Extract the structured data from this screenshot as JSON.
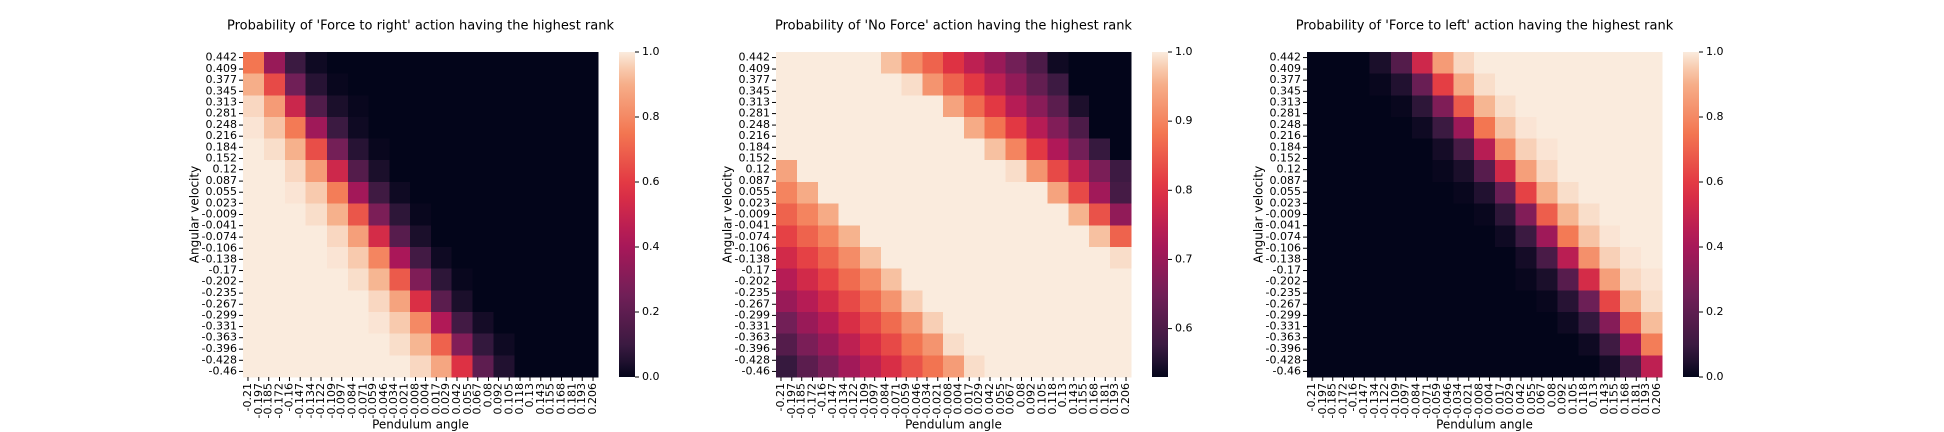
{
  "chart_data": [
    {
      "type": "heatmap",
      "title": "Probability of 'Force to right' action having the highest rank",
      "xlabel": "Pendulum angle",
      "ylabel": "Angular velocity",
      "colormap": "rocket",
      "xlim": [
        -0.216,
        0.212
      ],
      "ylim": [
        -0.476,
        0.458
      ],
      "zlim": [
        0,
        1
      ],
      "xticks": [
        -0.21,
        -0.197,
        -0.185,
        -0.172,
        -0.16,
        -0.147,
        -0.134,
        -0.122,
        -0.109,
        -0.097,
        -0.084,
        -0.071,
        -0.059,
        -0.046,
        -0.034,
        -0.021,
        -0.008,
        0.004,
        0.017,
        0.029,
        0.042,
        0.055,
        0.067,
        0.08,
        0.092,
        0.105,
        0.118,
        0.13,
        0.143,
        0.155,
        0.168,
        0.181,
        0.193,
        0.206
      ],
      "yticks": [
        0.442,
        0.409,
        0.377,
        0.345,
        0.313,
        0.281,
        0.248,
        0.216,
        0.184,
        0.152,
        0.12,
        0.087,
        0.055,
        0.023,
        -0.009,
        -0.041,
        -0.074,
        -0.106,
        -0.138,
        -0.17,
        -0.202,
        -0.235,
        -0.267,
        -0.299,
        -0.331,
        -0.363,
        -0.396,
        -0.428,
        -0.46
      ],
      "zticks": [
        {
          "value": 0,
          "label": "0.0"
        },
        {
          "value": 0.2,
          "label": "0.2"
        },
        {
          "value": 0.4,
          "label": "0.4"
        },
        {
          "value": 0.6,
          "label": "0.6"
        },
        {
          "value": 0.8,
          "label": "0.8"
        },
        {
          "value": 1,
          "label": "1.0"
        }
      ],
      "x": [
        -0.203,
        -0.178,
        -0.153,
        -0.128,
        -0.102,
        -0.077,
        -0.052,
        -0.027,
        -0.002,
        0.023,
        0.048,
        0.073,
        0.099,
        0.124,
        0.149,
        0.174,
        0.199
      ],
      "y": [
        0.427,
        0.365,
        0.302,
        0.24,
        0.178,
        0.116,
        0.053,
        -0.009,
        -0.071,
        -0.133,
        -0.196,
        -0.258,
        -0.32,
        -0.382,
        -0.445
      ],
      "z": [
        [
          0.75,
          0.36,
          0.1,
          0.02,
          0,
          0,
          0,
          0,
          0,
          0,
          0,
          0,
          0,
          0,
          0,
          0,
          0
        ],
        [
          0.9,
          0.64,
          0.25,
          0.06,
          0.01,
          0,
          0,
          0,
          0,
          0,
          0,
          0,
          0,
          0,
          0,
          0,
          0
        ],
        [
          0.97,
          0.85,
          0.51,
          0.16,
          0.04,
          0.01,
          0,
          0,
          0,
          0,
          0,
          0,
          0,
          0,
          0,
          0,
          0
        ],
        [
          0.99,
          0.94,
          0.76,
          0.38,
          0.1,
          0.02,
          0,
          0,
          0,
          0,
          0,
          0,
          0,
          0,
          0,
          0,
          0
        ],
        [
          1,
          0.98,
          0.91,
          0.65,
          0.26,
          0.06,
          0.01,
          0,
          0,
          0,
          0,
          0,
          0,
          0,
          0,
          0,
          0
        ],
        [
          1,
          1,
          0.97,
          0.85,
          0.52,
          0.17,
          0.04,
          0,
          0,
          0,
          0,
          0,
          0,
          0,
          0,
          0,
          0
        ],
        [
          1,
          1,
          0.99,
          0.95,
          0.77,
          0.39,
          0.11,
          0.02,
          0,
          0,
          0,
          0,
          0,
          0,
          0,
          0,
          0
        ],
        [
          1,
          1,
          1,
          0.98,
          0.91,
          0.67,
          0.28,
          0.07,
          0.01,
          0,
          0,
          0,
          0,
          0,
          0,
          0,
          0
        ],
        [
          1,
          1,
          1,
          1,
          0.97,
          0.86,
          0.54,
          0.18,
          0.04,
          0,
          0,
          0,
          0,
          0,
          0,
          0,
          0
        ],
        [
          1,
          1,
          1,
          1,
          0.99,
          0.95,
          0.79,
          0.41,
          0.12,
          0.02,
          0,
          0,
          0,
          0,
          0,
          0,
          0
        ],
        [
          1,
          1,
          1,
          1,
          1,
          0.98,
          0.92,
          0.68,
          0.29,
          0.07,
          0.01,
          0,
          0,
          0,
          0,
          0,
          0
        ],
        [
          1,
          1,
          1,
          1,
          1,
          1,
          0.97,
          0.87,
          0.56,
          0.19,
          0.04,
          0,
          0,
          0,
          0,
          0,
          0
        ],
        [
          1,
          1,
          1,
          1,
          1,
          1,
          0.99,
          0.95,
          0.8,
          0.43,
          0.12,
          0.03,
          0,
          0,
          0,
          0,
          0
        ],
        [
          1,
          1,
          1,
          1,
          1,
          1,
          1,
          0.98,
          0.92,
          0.7,
          0.3,
          0.08,
          0.02,
          0,
          0,
          0,
          0
        ],
        [
          1,
          1,
          1,
          1,
          1,
          1,
          1,
          1,
          0.97,
          0.88,
          0.57,
          0.2,
          0.05,
          0,
          0,
          0,
          0
        ]
      ]
    },
    {
      "type": "heatmap",
      "title": "Probability of 'No Force' action having the highest rank",
      "xlabel": "Pendulum angle",
      "ylabel": "Angular velocity",
      "colormap": "rocket",
      "xlim": [
        -0.216,
        0.212
      ],
      "ylim": [
        -0.476,
        0.458
      ],
      "zlim": [
        0.53,
        1
      ],
      "xticks": [
        -0.21,
        -0.197,
        -0.185,
        -0.172,
        -0.16,
        -0.147,
        -0.134,
        -0.122,
        -0.109,
        -0.097,
        -0.084,
        -0.071,
        -0.059,
        -0.046,
        -0.034,
        -0.021,
        -0.008,
        0.004,
        0.017,
        0.029,
        0.042,
        0.055,
        0.067,
        0.08,
        0.092,
        0.105,
        0.118,
        0.13,
        0.143,
        0.155,
        0.168,
        0.181,
        0.193,
        0.206
      ],
      "yticks": [
        0.442,
        0.409,
        0.377,
        0.345,
        0.313,
        0.281,
        0.248,
        0.216,
        0.184,
        0.152,
        0.12,
        0.087,
        0.055,
        0.023,
        -0.009,
        -0.041,
        -0.074,
        -0.106,
        -0.138,
        -0.17,
        -0.202,
        -0.235,
        -0.267,
        -0.299,
        -0.331,
        -0.363,
        -0.396,
        -0.428,
        -0.46
      ],
      "zticks": [
        0.6,
        0.7,
        0.8,
        0.9,
        {
          "value": 1,
          "label": "1.0"
        }
      ],
      "x": [
        -0.203,
        -0.178,
        -0.153,
        -0.128,
        -0.102,
        -0.077,
        -0.052,
        -0.027,
        -0.002,
        0.023,
        0.048,
        0.073,
        0.099,
        0.124,
        0.149,
        0.174,
        0.199
      ],
      "y": [
        0.427,
        0.365,
        0.302,
        0.24,
        0.178,
        0.116,
        0.053,
        -0.009,
        -0.071,
        -0.133,
        -0.196,
        -0.258,
        -0.32,
        -0.382,
        -0.445
      ],
      "z": [
        [
          1,
          1,
          1,
          1,
          1,
          0.97,
          0.91,
          0.86,
          0.8,
          0.75,
          0.7,
          0.65,
          0.6,
          0.54,
          0.53,
          0.53,
          0.53
        ],
        [
          1,
          1,
          1,
          1,
          1,
          1,
          0.99,
          0.92,
          0.86,
          0.81,
          0.75,
          0.69,
          0.63,
          0.58,
          0.53,
          0.53,
          0.53
        ],
        [
          1,
          1,
          1,
          1,
          1,
          1,
          1,
          1,
          0.94,
          0.87,
          0.81,
          0.74,
          0.68,
          0.62,
          0.55,
          0.53,
          0.53
        ],
        [
          1,
          1,
          1,
          1,
          1,
          1,
          1,
          1,
          1,
          0.95,
          0.88,
          0.81,
          0.74,
          0.67,
          0.6,
          0.53,
          0.53
        ],
        [
          1,
          1,
          1,
          1,
          1,
          1,
          1,
          1,
          1,
          1,
          0.97,
          0.9,
          0.81,
          0.73,
          0.65,
          0.57,
          0.53
        ],
        [
          0.94,
          1,
          1,
          1,
          1,
          1,
          1,
          1,
          1,
          1,
          1,
          0.99,
          0.92,
          0.83,
          0.75,
          0.66,
          0.58
        ],
        [
          0.9,
          0.95,
          1,
          1,
          1,
          1,
          1,
          1,
          1,
          1,
          1,
          1,
          1,
          0.94,
          0.83,
          0.71,
          0.59
        ],
        [
          0.86,
          0.9,
          0.95,
          1,
          1,
          1,
          1,
          1,
          1,
          1,
          1,
          1,
          1,
          1,
          0.96,
          0.84,
          0.69
        ],
        [
          0.82,
          0.86,
          0.9,
          0.96,
          1,
          1,
          1,
          1,
          1,
          1,
          1,
          1,
          1,
          1,
          1,
          0.97,
          0.86
        ],
        [
          0.78,
          0.82,
          0.86,
          0.91,
          0.97,
          1,
          1,
          1,
          1,
          1,
          1,
          1,
          1,
          1,
          1,
          1,
          0.99
        ],
        [
          0.74,
          0.78,
          0.82,
          0.87,
          0.91,
          0.97,
          1,
          1,
          1,
          1,
          1,
          1,
          1,
          1,
          1,
          1,
          1
        ],
        [
          0.7,
          0.74,
          0.78,
          0.83,
          0.87,
          0.92,
          0.98,
          1,
          1,
          1,
          1,
          1,
          1,
          1,
          1,
          1,
          1
        ],
        [
          0.65,
          0.7,
          0.74,
          0.79,
          0.83,
          0.87,
          0.92,
          0.98,
          1,
          1,
          1,
          1,
          1,
          1,
          1,
          1,
          1
        ],
        [
          0.61,
          0.66,
          0.7,
          0.75,
          0.79,
          0.83,
          0.88,
          0.92,
          0.99,
          1,
          1,
          1,
          1,
          1,
          1,
          1,
          1
        ],
        [
          0.57,
          0.62,
          0.66,
          0.71,
          0.75,
          0.79,
          0.84,
          0.88,
          0.93,
          0.99,
          1,
          1,
          1,
          1,
          1,
          1,
          1
        ]
      ]
    },
    {
      "type": "heatmap",
      "title": "Probability of 'Force to left' action having the highest rank",
      "xlabel": "Pendulum angle",
      "ylabel": "Angular velocity",
      "colormap": "rocket",
      "xlim": [
        -0.216,
        0.212
      ],
      "ylim": [
        -0.476,
        0.458
      ],
      "zlim": [
        0,
        1
      ],
      "xticks": [
        -0.21,
        -0.197,
        -0.185,
        -0.172,
        -0.16,
        -0.147,
        -0.134,
        -0.122,
        -0.109,
        -0.097,
        -0.084,
        -0.071,
        -0.059,
        -0.046,
        -0.034,
        -0.021,
        -0.008,
        0.004,
        0.017,
        0.029,
        0.042,
        0.055,
        0.067,
        0.08,
        0.092,
        0.105,
        0.118,
        0.13,
        0.143,
        0.155,
        0.168,
        0.181,
        0.193,
        0.206
      ],
      "yticks": [
        0.442,
        0.409,
        0.377,
        0.345,
        0.313,
        0.281,
        0.248,
        0.216,
        0.184,
        0.152,
        0.12,
        0.087,
        0.055,
        0.023,
        -0.009,
        -0.041,
        -0.074,
        -0.106,
        -0.138,
        -0.17,
        -0.202,
        -0.235,
        -0.267,
        -0.299,
        -0.331,
        -0.363,
        -0.396,
        -0.428,
        -0.46
      ],
      "zticks": [
        {
          "value": 0,
          "label": "0.0"
        },
        {
          "value": 0.2,
          "label": "0.2"
        },
        {
          "value": 0.4,
          "label": "0.4"
        },
        {
          "value": 0.6,
          "label": "0.6"
        },
        {
          "value": 0.8,
          "label": "0.8"
        },
        {
          "value": 1,
          "label": "1.0"
        }
      ],
      "x": [
        -0.203,
        -0.178,
        -0.153,
        -0.128,
        -0.102,
        -0.077,
        -0.052,
        -0.027,
        -0.002,
        0.023,
        0.048,
        0.073,
        0.099,
        0.124,
        0.149,
        0.174,
        0.199
      ],
      "y": [
        0.427,
        0.365,
        0.302,
        0.24,
        0.178,
        0.116,
        0.053,
        -0.009,
        -0.071,
        -0.133,
        -0.196,
        -0.258,
        -0.32,
        -0.382,
        -0.445
      ],
      "z": [
        [
          0,
          0,
          0,
          0.04,
          0.17,
          0.52,
          0.85,
          0.97,
          1,
          1,
          1,
          1,
          1,
          1,
          1,
          1,
          1
        ],
        [
          0,
          0,
          0,
          0.01,
          0.05,
          0.23,
          0.61,
          0.89,
          0.98,
          1,
          1,
          1,
          1,
          1,
          1,
          1,
          1
        ],
        [
          0,
          0,
          0,
          0,
          0.01,
          0.07,
          0.29,
          0.68,
          0.92,
          0.98,
          1,
          1,
          1,
          1,
          1,
          1,
          1
        ],
        [
          0,
          0,
          0,
          0,
          0,
          0.02,
          0.1,
          0.37,
          0.75,
          0.94,
          0.99,
          1,
          1,
          1,
          1,
          1,
          1
        ],
        [
          0,
          0,
          0,
          0,
          0,
          0,
          0.03,
          0.13,
          0.45,
          0.81,
          0.96,
          0.99,
          1,
          1,
          1,
          1,
          1
        ],
        [
          0,
          0,
          0,
          0,
          0,
          0,
          0.01,
          0.04,
          0.18,
          0.53,
          0.86,
          0.97,
          1,
          1,
          1,
          1,
          1
        ],
        [
          0,
          0,
          0,
          0,
          0,
          0,
          0,
          0.01,
          0.05,
          0.23,
          0.62,
          0.9,
          0.98,
          1,
          1,
          1,
          1
        ],
        [
          0,
          0,
          0,
          0,
          0,
          0,
          0,
          0,
          0.01,
          0.07,
          0.3,
          0.69,
          0.92,
          0.98,
          1,
          1,
          1
        ],
        [
          0,
          0,
          0,
          0,
          0,
          0,
          0,
          0,
          0,
          0.02,
          0.1,
          0.38,
          0.76,
          0.94,
          0.99,
          1,
          1
        ],
        [
          0,
          0,
          0,
          0,
          0,
          0,
          0,
          0,
          0,
          0,
          0.03,
          0.14,
          0.46,
          0.82,
          0.96,
          0.99,
          1
        ],
        [
          0,
          0,
          0,
          0,
          0,
          0,
          0,
          0,
          0,
          0,
          0.01,
          0.04,
          0.18,
          0.54,
          0.86,
          0.97,
          0.99
        ],
        [
          0,
          0,
          0,
          0,
          0,
          0,
          0,
          0,
          0,
          0,
          0,
          0.01,
          0.06,
          0.24,
          0.63,
          0.9,
          0.98
        ],
        [
          0,
          0,
          0,
          0,
          0,
          0,
          0,
          0,
          0,
          0,
          0,
          0,
          0.02,
          0.08,
          0.31,
          0.7,
          0.93
        ],
        [
          0,
          0,
          0,
          0,
          0,
          0,
          0,
          0,
          0,
          0,
          0,
          0,
          0,
          0.02,
          0.11,
          0.39,
          0.77
        ],
        [
          0,
          0,
          0,
          0,
          0,
          0,
          0,
          0,
          0,
          0,
          0,
          0,
          0,
          0,
          0.03,
          0.14,
          0.47
        ]
      ]
    }
  ]
}
